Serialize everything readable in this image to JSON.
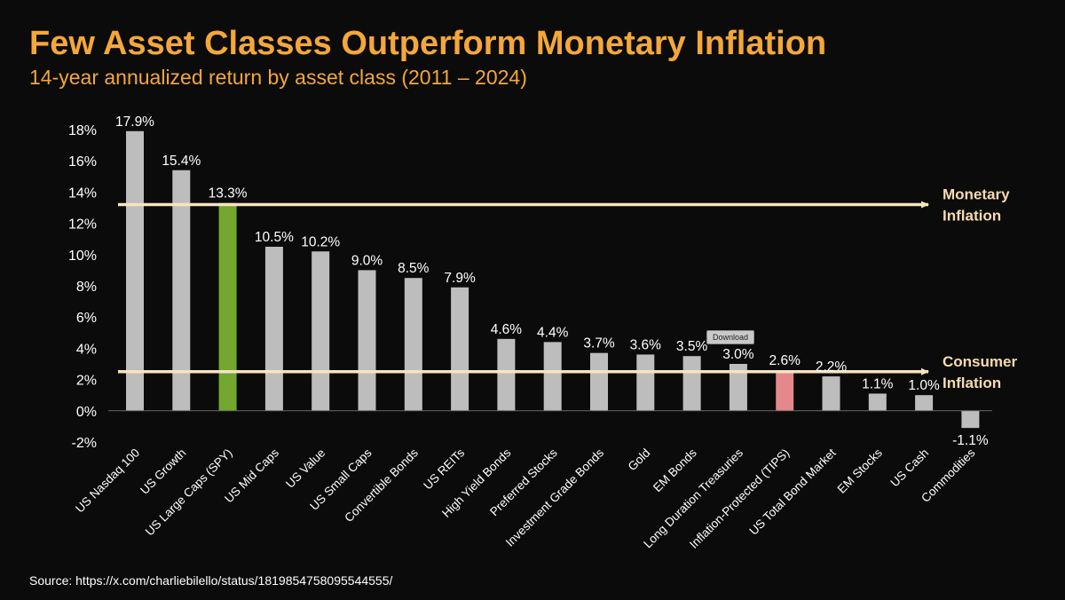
{
  "title": "Few Asset Classes Outperform Monetary Inflation",
  "subtitle": "14-year annualized return by asset class (2011 – 2024)",
  "source": "Source: https://x.com/charliebilello/status/1819854758095544555/",
  "download_label": "Download",
  "colors": {
    "title": "#f4a73a",
    "bar_default": "#bdbdbd",
    "bar_spy": "#73a72f",
    "bar_tips": "#e4888c",
    "reference_line": "#f7e3c0",
    "background": "#0b0b0b"
  },
  "chart_data": {
    "type": "bar",
    "title": "Few Asset Classes Outperform Monetary Inflation",
    "subtitle": "14-year annualized return by asset class (2011 – 2024)",
    "xlabel": "",
    "ylabel": "",
    "ylim": [
      -2,
      18
    ],
    "yticks": [
      -2,
      0,
      2,
      4,
      6,
      8,
      10,
      12,
      14,
      16,
      18
    ],
    "ytick_labels": [
      "-2%",
      "0%",
      "2%",
      "4%",
      "6%",
      "8%",
      "10%",
      "12%",
      "14%",
      "16%",
      "18%"
    ],
    "grid": false,
    "legend": "none",
    "categories": [
      "US Nasdaq 100",
      "US Growth",
      "US Large Caps (SPY)",
      "US Mid Caps",
      "US Value",
      "US Small Caps",
      "Convertible Bonds",
      "US REITs",
      "High Yield Bonds",
      "Preferred Stocks",
      "Investment Grade Bonds",
      "Gold",
      "EM Bonds",
      "Long Duration Treasuries",
      "Inflation-Protected (TIPS)",
      "US Total Bond Market",
      "EM Stocks",
      "US Cash",
      "Commodities"
    ],
    "values": [
      17.9,
      15.4,
      13.3,
      10.5,
      10.2,
      9.0,
      8.5,
      7.9,
      4.6,
      4.4,
      3.7,
      3.6,
      3.5,
      3.0,
      2.6,
      2.2,
      1.1,
      1.0,
      -1.1
    ],
    "value_labels": [
      "17.9%",
      "15.4%",
      "13.3%",
      "10.5%",
      "10.2%",
      "9.0%",
      "8.5%",
      "7.9%",
      "4.6%",
      "4.4%",
      "3.7%",
      "3.6%",
      "3.5%",
      "3.0%",
      "2.6%",
      "2.2%",
      "1.1%",
      "1.0%",
      "-1.1%"
    ],
    "highlights": {
      "US Large Caps (SPY)": "#73a72f",
      "Inflation-Protected (TIPS)": "#e4888c"
    },
    "reference_lines": [
      {
        "value": 13.2,
        "label_line1": "Monetary",
        "label_line2": "Inflation"
      },
      {
        "value": 2.5,
        "label_line1": "Consumer",
        "label_line2": "Inflation"
      }
    ]
  }
}
